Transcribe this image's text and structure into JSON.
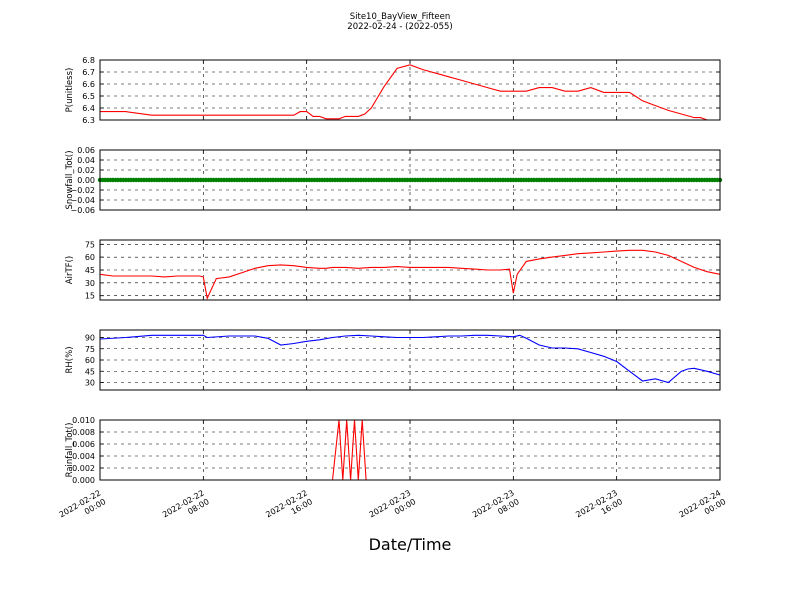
{
  "figure": {
    "title": "Site10_BayView_Fifteen",
    "subtitle": "2022-02-24 - (2022-055)",
    "xlabel": "Date/Time"
  },
  "chart_data": [
    {
      "type": "line",
      "ylabel": "P(unitless)",
      "ylim": [
        6.3,
        6.8
      ],
      "yticks": [
        "6.3",
        "6.4",
        "6.5",
        "6.6",
        "6.7",
        "6.8"
      ],
      "grid": true,
      "color": "#ff0000",
      "series": [
        {
          "x": [
            0,
            2,
            4,
            4.5,
            6,
            8,
            10,
            12,
            14,
            15,
            15.5,
            16,
            16.5,
            17,
            17.5,
            18,
            18.5,
            19,
            19.5,
            20,
            20.5,
            21,
            22,
            23,
            24,
            25,
            26,
            27,
            28,
            29,
            30,
            31,
            32,
            33,
            34,
            35,
            36,
            37,
            38,
            39,
            40,
            41,
            42,
            43,
            44,
            45,
            46,
            46.5,
            47,
            48
          ],
          "y": [
            6.37,
            6.37,
            6.34,
            6.34,
            6.34,
            6.34,
            6.34,
            6.34,
            6.34,
            6.34,
            6.37,
            6.37,
            6.33,
            6.33,
            6.31,
            6.31,
            6.31,
            6.33,
            6.33,
            6.33,
            6.35,
            6.4,
            6.58,
            6.73,
            6.76,
            6.72,
            6.69,
            6.66,
            6.63,
            6.6,
            6.57,
            6.54,
            6.54,
            6.54,
            6.57,
            6.57,
            6.54,
            6.54,
            6.57,
            6.53,
            6.53,
            6.53,
            6.46,
            6.42,
            6.38,
            6.35,
            6.32,
            6.32,
            6.3,
            6.3
          ]
        }
      ]
    },
    {
      "type": "scatter",
      "ylabel": "Snowfall_Tot()",
      "ylim": [
        -0.06,
        0.06
      ],
      "yticks": [
        "0.06",
        "0.04",
        "0.02",
        "0.00",
        "−0.02",
        "−0.04",
        "−0.06"
      ],
      "grid": true,
      "color": "#008000",
      "series": [
        {
          "constant": 0.0,
          "x_range": [
            0,
            48
          ]
        }
      ]
    },
    {
      "type": "line",
      "ylabel": "AirTF()",
      "ylim": [
        10,
        80
      ],
      "yticks": [
        "75",
        "60",
        "45",
        "30",
        "15"
      ],
      "grid": true,
      "color": "#ff0000",
      "series": [
        {
          "x": [
            0,
            1,
            2,
            3,
            4,
            5,
            6,
            7,
            7.7,
            8,
            8.3,
            9,
            10,
            11,
            12,
            13,
            14,
            15,
            16,
            17,
            17.5,
            18,
            19,
            20,
            21,
            22,
            23,
            24,
            25,
            26,
            27,
            28,
            29,
            30,
            31,
            31.7,
            32,
            32.3,
            33,
            34,
            35,
            36,
            37,
            38,
            39,
            40,
            41,
            42,
            43,
            44,
            45,
            46,
            47,
            48
          ],
          "y": [
            40,
            38,
            38,
            38,
            38,
            37,
            38,
            38,
            38,
            37,
            12,
            35,
            37,
            42,
            47,
            50,
            51,
            50,
            48,
            47,
            47,
            48,
            48,
            47,
            48,
            48,
            49,
            48,
            48,
            48,
            48,
            47,
            46,
            45,
            45,
            46,
            18,
            40,
            55,
            58,
            60,
            62,
            64,
            65,
            66,
            67,
            68,
            68,
            66,
            62,
            55,
            48,
            43,
            40
          ]
        }
      ]
    },
    {
      "type": "line",
      "ylabel": "RH(%)",
      "ylim": [
        20,
        100
      ],
      "yticks": [
        "90",
        "75",
        "60",
        "45",
        "30"
      ],
      "grid": true,
      "color": "#0000ff",
      "series": [
        {
          "x": [
            0,
            2,
            4,
            6,
            8,
            8.3,
            10,
            12,
            13,
            14,
            15,
            16,
            17,
            18,
            19,
            20,
            21,
            22,
            23,
            24,
            25,
            26,
            27,
            28,
            29,
            30,
            31,
            32,
            32.5,
            33,
            34,
            35,
            36,
            37,
            38,
            39,
            40,
            41,
            42,
            43,
            44,
            45,
            45.5,
            46,
            47,
            48
          ],
          "y": [
            88,
            90,
            93,
            93,
            93,
            90,
            92,
            92,
            89,
            80,
            82,
            85,
            87,
            90,
            92,
            93,
            92,
            91,
            90,
            90,
            90,
            91,
            92,
            92,
            93,
            93,
            92,
            91,
            93,
            89,
            80,
            76,
            76,
            75,
            70,
            65,
            58,
            45,
            32,
            35,
            30,
            45,
            48,
            49,
            45,
            40
          ]
        }
      ]
    },
    {
      "type": "line",
      "ylabel": "Rainfall_Tot()",
      "ylim": [
        0,
        0.01
      ],
      "yticks": [
        "0.010",
        "0.008",
        "0.006",
        "0.004",
        "0.002",
        "0.000"
      ],
      "grid": true,
      "color": "#ff0000",
      "series": [
        {
          "x": [
            0,
            18,
            18.5,
            18.8,
            19.1,
            19.4,
            19.7,
            20,
            20.3,
            20.6,
            21,
            48
          ],
          "y": [
            0,
            0,
            0.01,
            0,
            0.01,
            0,
            0.01,
            0,
            0.01,
            0,
            0,
            0
          ]
        }
      ]
    }
  ],
  "x_axis": {
    "range": [
      0,
      48
    ],
    "ticks": [
      {
        "x": 0,
        "line1": "2022-02-22",
        "line2": "00:00"
      },
      {
        "x": 8,
        "line1": "2022-02-22",
        "line2": "08:00"
      },
      {
        "x": 16,
        "line1": "2022-02-22",
        "line2": "16:00"
      },
      {
        "x": 24,
        "line1": "2022-02-23",
        "line2": "00:00"
      },
      {
        "x": 32,
        "line1": "2022-02-23",
        "line2": "08:00"
      },
      {
        "x": 40,
        "line1": "2022-02-23",
        "line2": "16:00"
      },
      {
        "x": 48,
        "line1": "2022-02-24",
        "line2": "00:00"
      }
    ]
  }
}
